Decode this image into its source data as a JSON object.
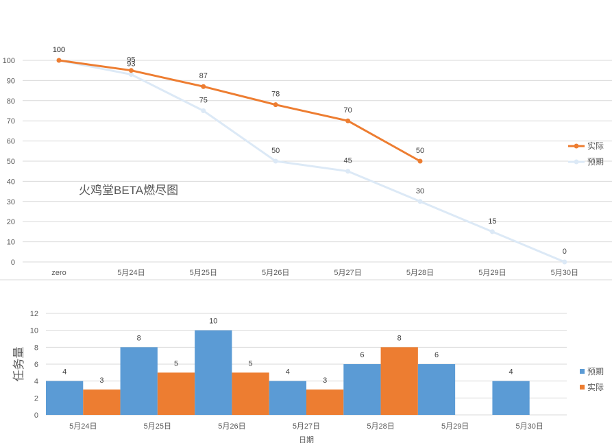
{
  "colors": {
    "actual": "#ed7d31",
    "expected": "#dce9f6",
    "bar_expected": "#5b9bd5",
    "bar_actual": "#ed7d31"
  },
  "chart_data": [
    {
      "type": "line",
      "title": "火鸡堂BETA燃尽图",
      "categories": [
        "zero",
        "5月24日",
        "5月25日",
        "5月26日",
        "5月27日",
        "5月28日",
        "5月29日",
        "5月30日"
      ],
      "ylim": [
        0,
        100
      ],
      "yticks": [
        0,
        10,
        20,
        30,
        40,
        50,
        60,
        70,
        80,
        90,
        100
      ],
      "grid": true,
      "legend_position": "right",
      "series": [
        {
          "name": "实际",
          "values": [
            100,
            95,
            87,
            78,
            70,
            50,
            null,
            null
          ]
        },
        {
          "name": "预期",
          "values": [
            100,
            93,
            75,
            50,
            45,
            30,
            15,
            0
          ]
        }
      ]
    },
    {
      "type": "bar",
      "categories": [
        "5月24日",
        "5月25日",
        "5月26日",
        "5月27日",
        "5月28日",
        "5月29日",
        "5月30日"
      ],
      "ylim": [
        0,
        12
      ],
      "yticks": [
        0,
        2,
        4,
        6,
        8,
        10,
        12
      ],
      "xlabel": "日期",
      "ylabel": "任务量",
      "grid": true,
      "legend_position": "right",
      "series": [
        {
          "name": "预期",
          "values": [
            4,
            8,
            10,
            4,
            6,
            6,
            4
          ]
        },
        {
          "name": "实际",
          "values": [
            3,
            5,
            5,
            3,
            8,
            null,
            null
          ]
        }
      ]
    }
  ]
}
